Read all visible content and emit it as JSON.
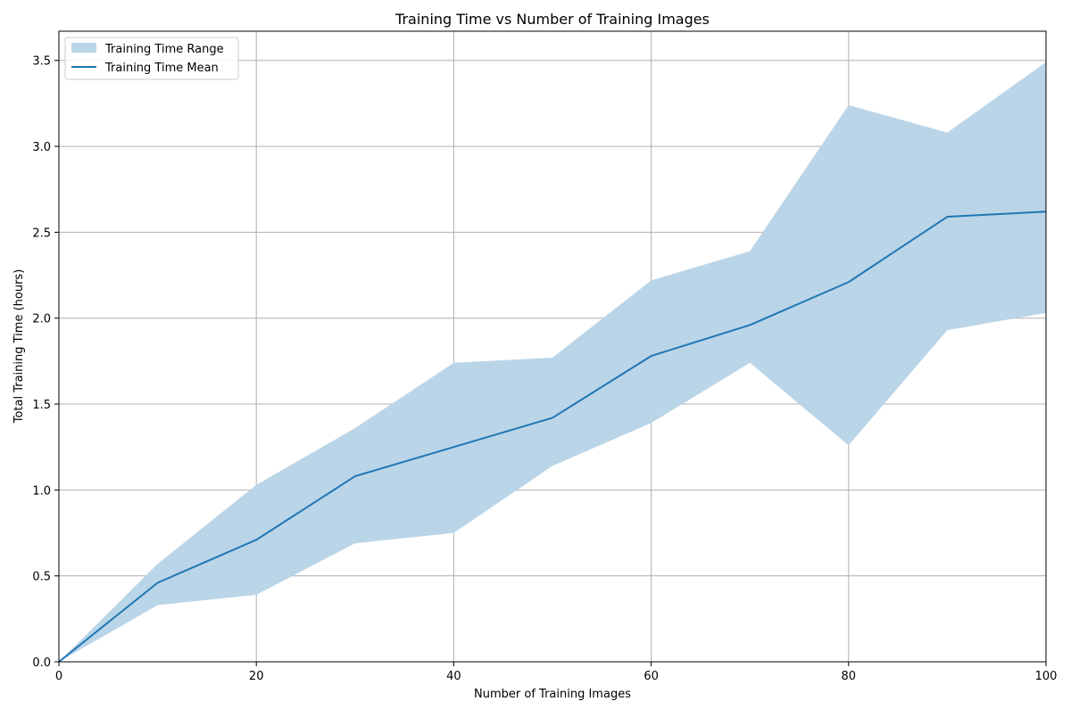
{
  "chart_data": {
    "type": "area",
    "title": "Training Time vs Number of Training Images",
    "xlabel": "Number of Training Images",
    "ylabel": "Total Training Time (hours)",
    "xlim": [
      0,
      100
    ],
    "ylim": [
      0,
      3.67
    ],
    "x_ticks": [
      0,
      20,
      40,
      60,
      80,
      100
    ],
    "x_tick_labels": [
      "0",
      "20",
      "40",
      "60",
      "80",
      "100"
    ],
    "y_ticks": [
      0,
      0.5,
      1.0,
      1.5,
      2.0,
      2.5,
      3.0,
      3.5
    ],
    "y_tick_labels": [
      "0.0",
      "0.5",
      "1.0",
      "1.5",
      "2.0",
      "2.5",
      "3.0",
      "3.5"
    ],
    "grid": true,
    "legend_position": "top-left",
    "x": [
      0,
      10,
      20,
      30,
      40,
      50,
      60,
      70,
      80,
      90,
      100
    ],
    "series": [
      {
        "name": "Training Time Range",
        "kind": "band",
        "color": "#bad5e8",
        "lower": [
          0.0,
          0.33,
          0.39,
          0.69,
          0.75,
          1.14,
          1.39,
          1.74,
          1.26,
          1.93,
          2.03
        ],
        "upper": [
          0.0,
          0.57,
          1.03,
          1.36,
          1.74,
          1.77,
          2.22,
          2.39,
          3.24,
          3.08,
          3.49
        ]
      },
      {
        "name": "Training Time Mean",
        "kind": "line",
        "color": "#1f77b4",
        "values": [
          0.0,
          0.46,
          0.71,
          1.08,
          1.25,
          1.42,
          1.78,
          1.96,
          2.21,
          2.59,
          2.62
        ]
      }
    ]
  }
}
